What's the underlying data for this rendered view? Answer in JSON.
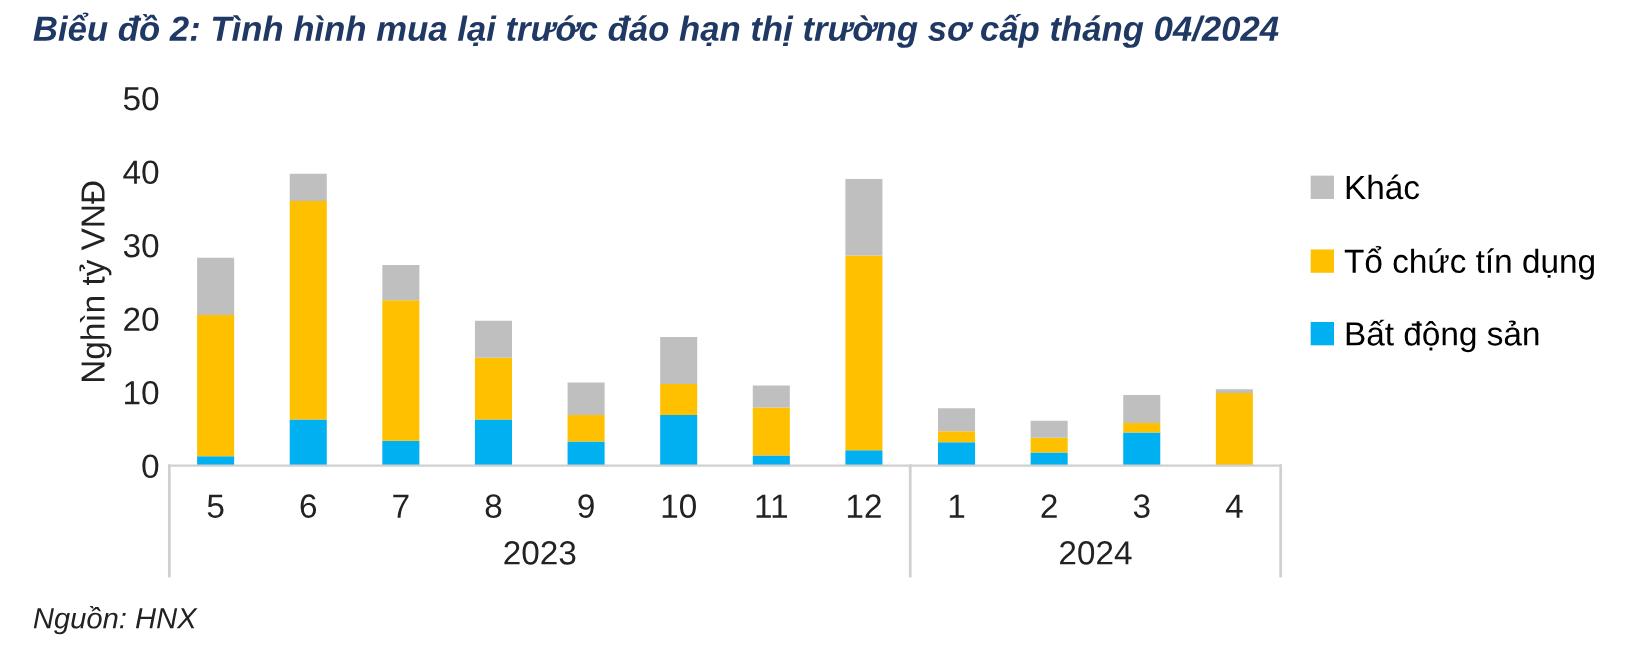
{
  "chart_data": {
    "type": "bar",
    "stacked": true,
    "title": "Biểu đồ 2: Tình hình mua lại trước đáo hạn thị trường sơ cấp tháng 04/2024",
    "ylabel": "Nghìn tỷ VNĐ",
    "categories": [
      "5",
      "6",
      "7",
      "8",
      "9",
      "10",
      "11",
      "12",
      "1",
      "2",
      "3",
      "4"
    ],
    "series": [
      {
        "name": "Bất động sản",
        "color": "#00b0f0",
        "values": [
          1.3,
          6.3,
          3.4,
          6.3,
          3.3,
          6.9,
          1.4,
          2.1,
          3.2,
          1.8,
          4.5,
          0
        ]
      },
      {
        "name": "Tổ chức tín dụng",
        "color": "#ffc000",
        "values": [
          19.2,
          29.7,
          19.1,
          8.4,
          3.6,
          4.2,
          6.5,
          26.5,
          1.5,
          2.0,
          1.3,
          9.9
        ]
      },
      {
        "name": "Khác",
        "color": "#bfbfbf",
        "values": [
          7.8,
          3.7,
          4.8,
          5.0,
          4.4,
          6.4,
          3.0,
          10.4,
          3.1,
          2.3,
          3.8,
          0.5
        ]
      }
    ],
    "ylim": [
      0,
      50
    ],
    "yticks": [
      0,
      10,
      20,
      30,
      40,
      50
    ],
    "grid": false,
    "legend": "right",
    "annotations": [
      "2023",
      "2024",
      "Nguồn: HNX"
    ]
  }
}
